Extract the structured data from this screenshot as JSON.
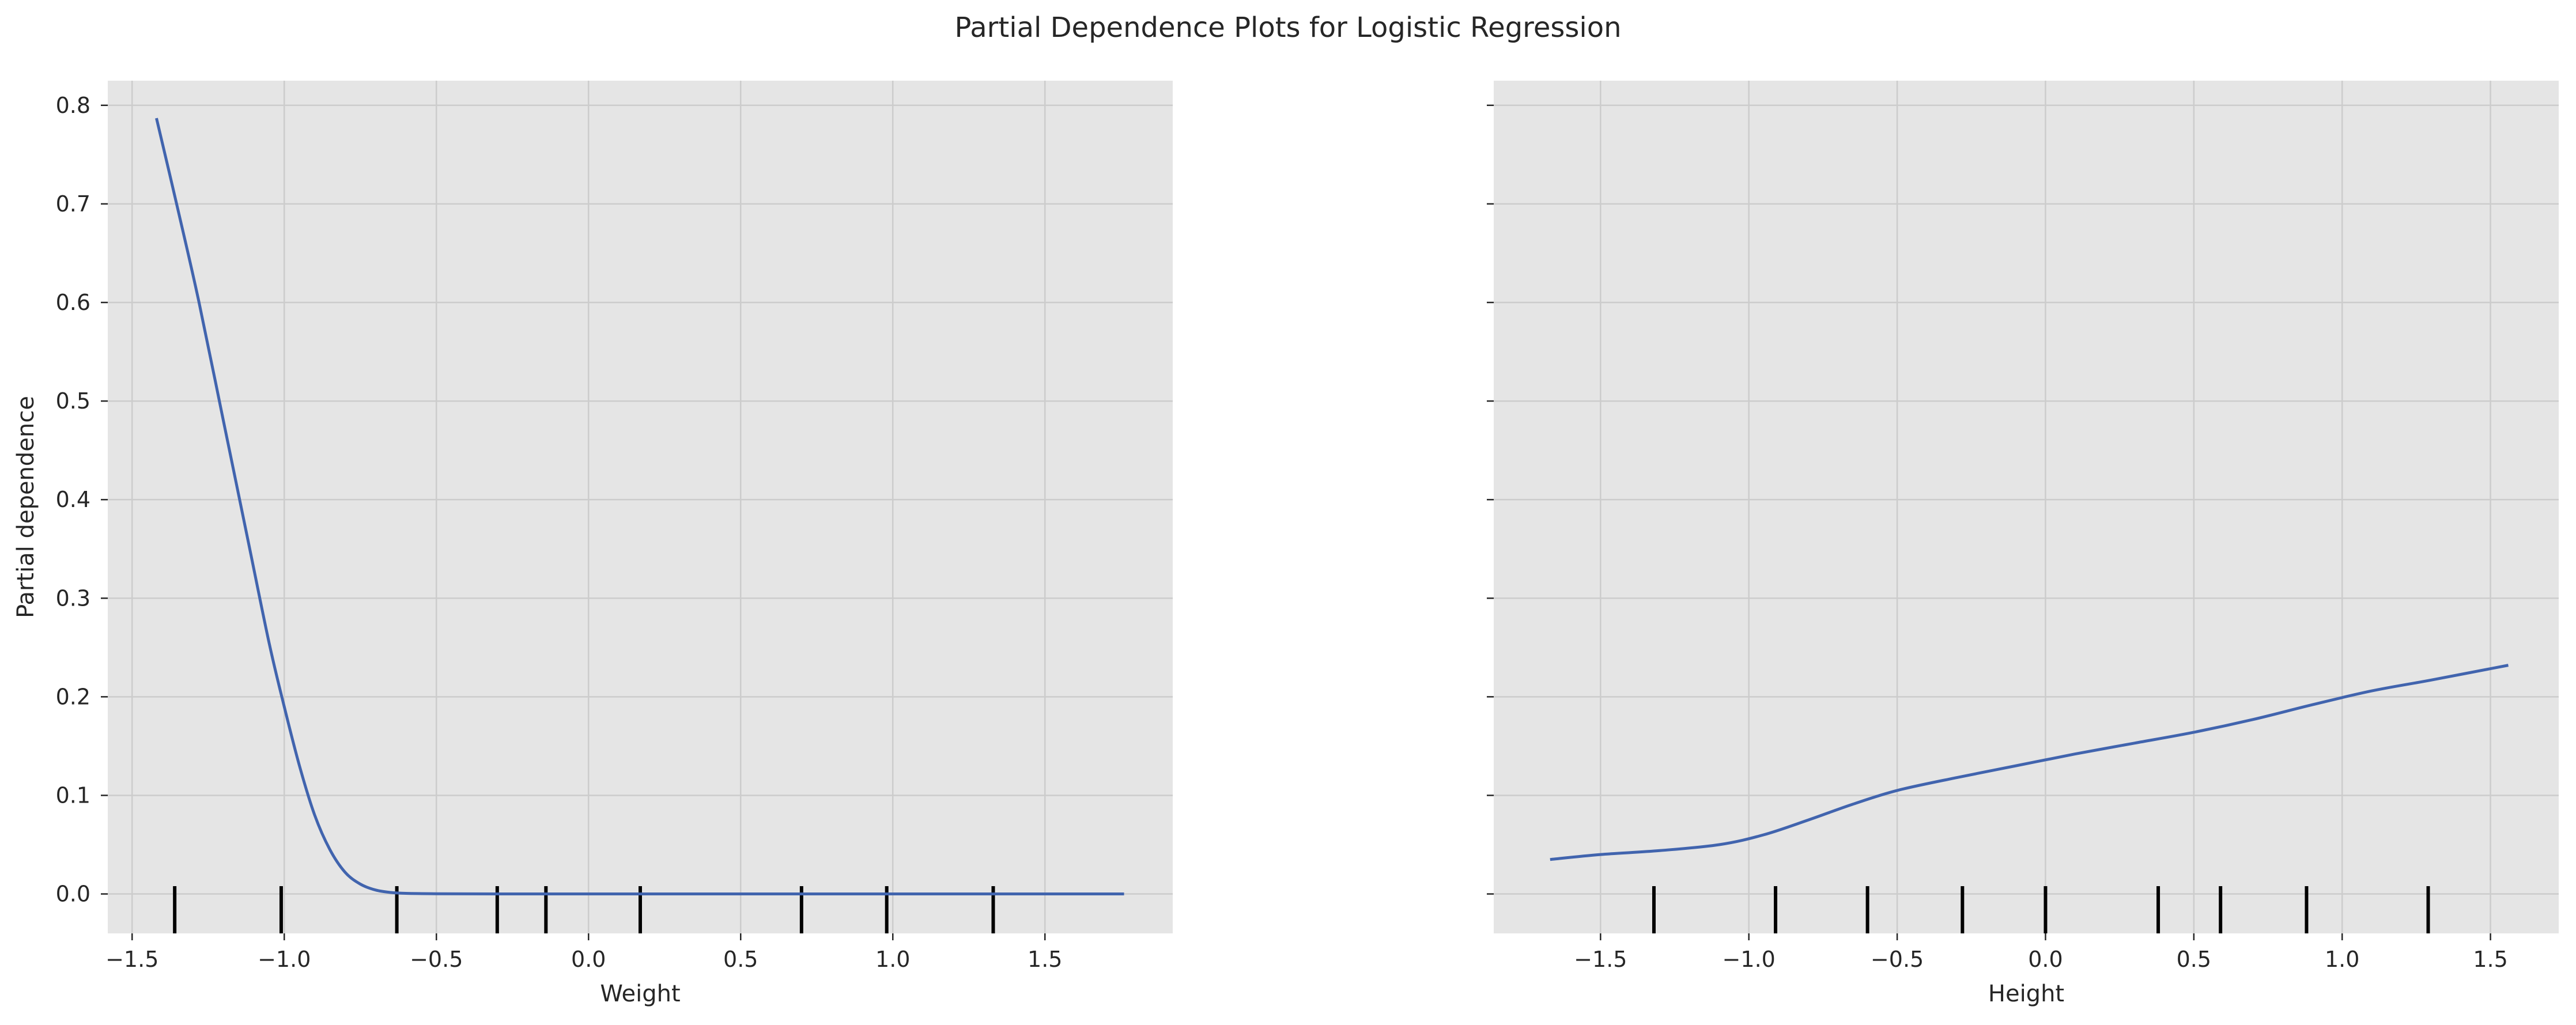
{
  "figure": {
    "title": "Partial Dependence Plots for Logistic Regression"
  },
  "colors": {
    "background": "#ffffff",
    "panel": "#e5e5e5",
    "grid": "#cccccc",
    "line": "#4164ae",
    "rug": "#000000",
    "text": "#262626"
  },
  "chart_data": [
    {
      "type": "line",
      "title": "",
      "xlabel": "Weight",
      "ylabel": "Partial dependence",
      "xlim": [
        -1.58,
        1.92
      ],
      "ylim": [
        -0.04,
        0.825
      ],
      "xticks": [
        -1.5,
        -1.0,
        -0.5,
        0.0,
        0.5,
        1.0,
        1.5
      ],
      "xtick_labels": [
        "−1.5",
        "−1.0",
        "−0.5",
        "0.0",
        "0.5",
        "1.0",
        "1.5"
      ],
      "yticks": [
        0.0,
        0.1,
        0.2,
        0.3,
        0.4,
        0.5,
        0.6,
        0.7,
        0.8
      ],
      "ytick_labels": [
        "0.0",
        "0.1",
        "0.2",
        "0.3",
        "0.4",
        "0.5",
        "0.6",
        "0.7",
        "0.8"
      ],
      "grid": true,
      "series": [
        {
          "x": [
            -1.42,
            -1.35,
            -1.28,
            -1.2,
            -1.12,
            -1.05,
            -1.0,
            -0.95,
            -0.9,
            -0.85,
            -0.8,
            -0.75,
            -0.7,
            -0.65,
            -0.6,
            -0.5,
            -0.3,
            0.0,
            0.5,
            1.0,
            1.5,
            1.76
          ],
          "y": [
            0.787,
            0.695,
            0.6,
            0.48,
            0.36,
            0.255,
            0.19,
            0.13,
            0.08,
            0.045,
            0.022,
            0.01,
            0.004,
            0.0015,
            0.0006,
            0.0002,
            0.0,
            0.0,
            0.0,
            0.0,
            0.0,
            0.0
          ]
        }
      ],
      "rug": [
        -1.36,
        -1.01,
        -0.63,
        -0.3,
        -0.14,
        0.17,
        0.7,
        0.98,
        1.33
      ]
    },
    {
      "type": "line",
      "title": "",
      "xlabel": "Height",
      "ylabel": "",
      "xlim": [
        -1.86,
        1.73
      ],
      "ylim": [
        -0.04,
        0.825
      ],
      "xticks": [
        -1.5,
        -1.0,
        -0.5,
        0.0,
        0.5,
        1.0,
        1.5
      ],
      "xtick_labels": [
        "−1.5",
        "−1.0",
        "−0.5",
        "0.0",
        "0.5",
        "1.0",
        "1.5"
      ],
      "yticks": [
        0.0,
        0.1,
        0.2,
        0.3,
        0.4,
        0.5,
        0.6,
        0.7,
        0.8
      ],
      "grid": true,
      "series": [
        {
          "x": [
            -1.67,
            -1.5,
            -1.3,
            -1.1,
            -0.95,
            -0.8,
            -0.65,
            -0.5,
            -0.3,
            -0.1,
            0.1,
            0.3,
            0.5,
            0.7,
            0.9,
            1.1,
            1.3,
            1.56
          ],
          "y": [
            0.035,
            0.04,
            0.044,
            0.05,
            0.06,
            0.075,
            0.091,
            0.105,
            0.118,
            0.13,
            0.142,
            0.153,
            0.164,
            0.177,
            0.192,
            0.206,
            0.217,
            0.232
          ]
        }
      ],
      "rug": [
        -1.32,
        -0.91,
        -0.6,
        -0.28,
        0.0,
        0.38,
        0.59,
        0.88,
        1.29
      ]
    }
  ]
}
